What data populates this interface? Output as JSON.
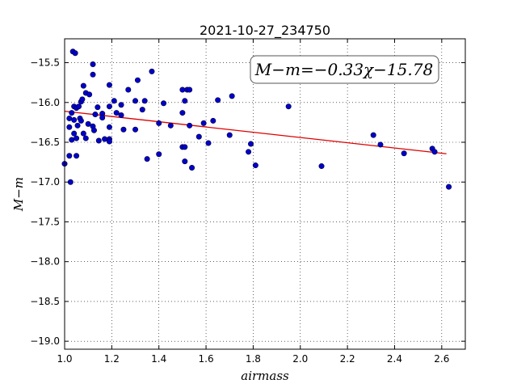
{
  "chart_data": {
    "type": "scatter",
    "title": "2021-10-27_234750",
    "xlabel": "airmass",
    "ylabel": "M−m",
    "xlim": [
      1.0,
      2.7
    ],
    "ylim": [
      -19.1,
      -15.2
    ],
    "y_inverted": true,
    "grid": true,
    "xticks": [
      1.0,
      1.2,
      1.4,
      1.6,
      1.8,
      2.0,
      2.2,
      2.4,
      2.6
    ],
    "xtick_labels": [
      "1.0",
      "1.2",
      "1.4",
      "1.6",
      "1.8",
      "2.0",
      "2.2",
      "2.4",
      "2.6"
    ],
    "yticks": [
      -15.5,
      -16.0,
      -16.5,
      -17.0,
      -17.5,
      -18.0,
      -18.5,
      -19.0
    ],
    "ytick_labels": [
      "−15.5",
      "−16.0",
      "−16.5",
      "−17.0",
      "−17.5",
      "−18.0",
      "−18.5",
      "−19.0"
    ],
    "annotation": "M−m=−0.33χ−15.78",
    "annotation_placement": "top-right",
    "fit": {
      "slope": -0.33,
      "intercept": -15.78,
      "x_range": [
        1.0,
        2.62
      ]
    },
    "point_color": "#0000cc",
    "fit_color": "#dd0000",
    "points": [
      [
        1.0,
        -16.77
      ],
      [
        1.02,
        -16.2
      ],
      [
        1.02,
        -16.31
      ],
      [
        1.02,
        -16.67
      ],
      [
        1.025,
        -17.0
      ],
      [
        1.03,
        -16.13
      ],
      [
        1.03,
        -16.47
      ],
      [
        1.035,
        -15.36
      ],
      [
        1.04,
        -16.05
      ],
      [
        1.04,
        -16.22
      ],
      [
        1.04,
        -16.39
      ],
      [
        1.045,
        -15.38
      ],
      [
        1.05,
        -16.07
      ],
      [
        1.05,
        -16.45
      ],
      [
        1.05,
        -16.67
      ],
      [
        1.055,
        -16.29
      ],
      [
        1.06,
        -16.05
      ],
      [
        1.065,
        -16.2
      ],
      [
        1.07,
        -15.99
      ],
      [
        1.07,
        -16.23
      ],
      [
        1.075,
        -15.96
      ],
      [
        1.08,
        -15.79
      ],
      [
        1.08,
        -16.39
      ],
      [
        1.09,
        -15.88
      ],
      [
        1.09,
        -16.45
      ],
      [
        1.1,
        -16.27
      ],
      [
        1.105,
        -15.9
      ],
      [
        1.12,
        -15.52
      ],
      [
        1.12,
        -15.65
      ],
      [
        1.12,
        -16.3
      ],
      [
        1.125,
        -16.35
      ],
      [
        1.13,
        -16.15
      ],
      [
        1.14,
        -16.06
      ],
      [
        1.145,
        -16.48
      ],
      [
        1.16,
        -16.14
      ],
      [
        1.16,
        -16.19
      ],
      [
        1.17,
        -16.46
      ],
      [
        1.19,
        -15.78
      ],
      [
        1.19,
        -16.05
      ],
      [
        1.19,
        -16.31
      ],
      [
        1.19,
        -16.46
      ],
      [
        1.19,
        -16.49
      ],
      [
        1.21,
        -15.98
      ],
      [
        1.22,
        -16.13
      ],
      [
        1.24,
        -16.03
      ],
      [
        1.24,
        -16.16
      ],
      [
        1.25,
        -16.34
      ],
      [
        1.27,
        -15.84
      ],
      [
        1.3,
        -15.98
      ],
      [
        1.3,
        -16.34
      ],
      [
        1.31,
        -15.72
      ],
      [
        1.33,
        -16.09
      ],
      [
        1.34,
        -15.98
      ],
      [
        1.35,
        -16.71
      ],
      [
        1.37,
        -15.61
      ],
      [
        1.4,
        -16.26
      ],
      [
        1.4,
        -16.65
      ],
      [
        1.42,
        -16.01
      ],
      [
        1.45,
        -16.29
      ],
      [
        1.5,
        -15.84
      ],
      [
        1.5,
        -16.13
      ],
      [
        1.5,
        -16.56
      ],
      [
        1.51,
        -15.98
      ],
      [
        1.51,
        -16.56
      ],
      [
        1.51,
        -16.74
      ],
      [
        1.52,
        -15.84
      ],
      [
        1.53,
        -15.84
      ],
      [
        1.53,
        -16.29
      ],
      [
        1.54,
        -16.82
      ],
      [
        1.57,
        -16.43
      ],
      [
        1.59,
        -16.26
      ],
      [
        1.61,
        -16.51
      ],
      [
        1.63,
        -16.23
      ],
      [
        1.65,
        -15.97
      ],
      [
        1.7,
        -16.41
      ],
      [
        1.71,
        -15.92
      ],
      [
        1.78,
        -16.62
      ],
      [
        1.79,
        -16.52
      ],
      [
        1.81,
        -16.79
      ],
      [
        1.95,
        -16.05
      ],
      [
        2.09,
        -16.8
      ],
      [
        2.31,
        -16.41
      ],
      [
        2.34,
        -16.53
      ],
      [
        2.44,
        -16.64
      ],
      [
        2.56,
        -16.58
      ],
      [
        2.57,
        -16.62
      ],
      [
        2.63,
        -17.06
      ]
    ]
  }
}
